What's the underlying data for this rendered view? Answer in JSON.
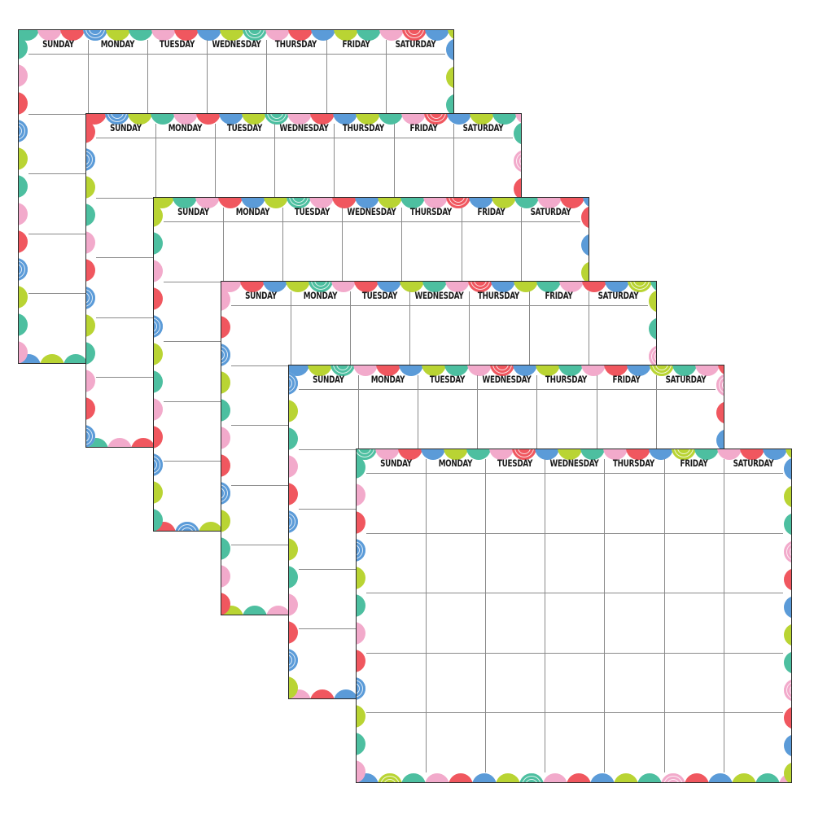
{
  "calendar": {
    "days": [
      "SUNDAY",
      "MONDAY",
      "TUESDAY",
      "WEDNESDAY",
      "THURSDAY",
      "FRIDAY",
      "SATURDAY"
    ],
    "sheet_count": 6,
    "weeks_per_sheet": 5,
    "colors": {
      "teal": "#4dbfa0",
      "pink": "#f2aacb",
      "red": "#f0575f",
      "blue": "#5b9bd8",
      "lime": "#b9d433",
      "border": "#2a2a2a",
      "grid": "#8a8a8a"
    }
  }
}
